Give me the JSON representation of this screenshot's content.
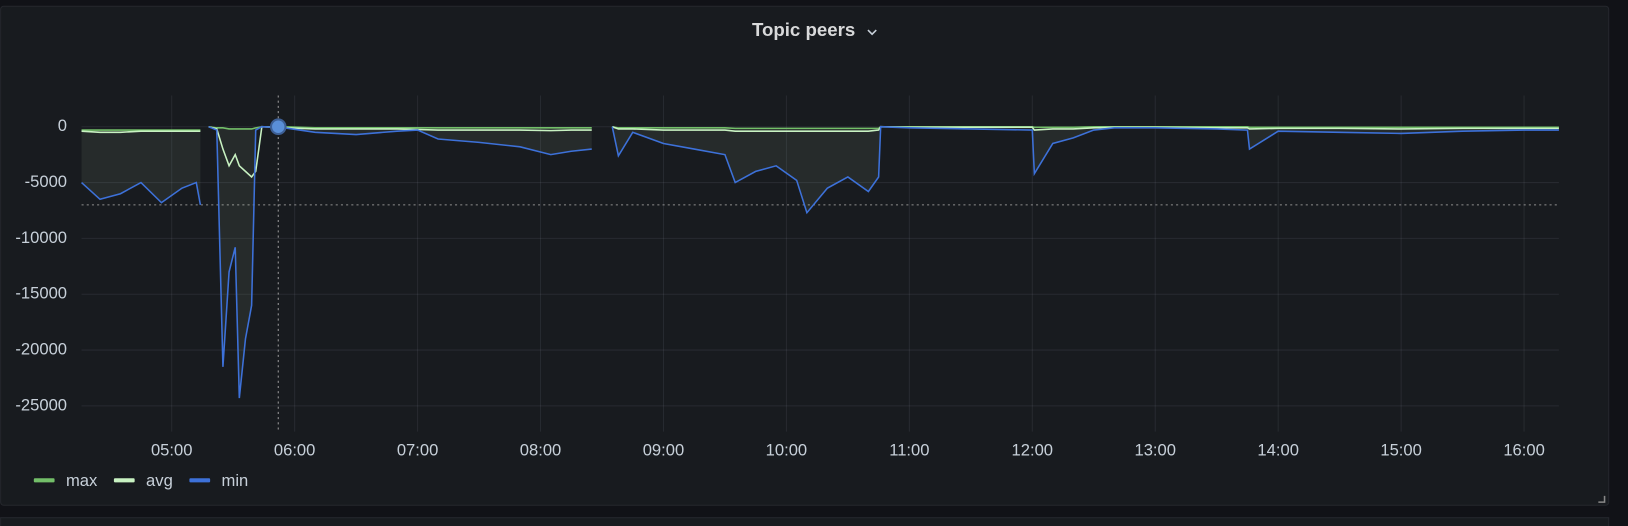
{
  "chart_data": {
    "type": "line",
    "title": "Topic peers",
    "x": [
      "04:16",
      "04:25",
      "04:35",
      "04:45",
      "04:55",
      "05:05",
      "05:12",
      "05:14",
      "05:16",
      "05:18",
      "05:22",
      "05:25",
      "05:28",
      "05:31",
      "05:33",
      "05:36",
      "05:39",
      "05:41",
      "05:44",
      "05:55",
      "06:10",
      "06:30",
      "06:50",
      "07:00",
      "07:10",
      "07:30",
      "07:50",
      "08:05",
      "08:15",
      "08:25",
      "08:30",
      "08:35",
      "08:38",
      "08:45",
      "09:00",
      "09:15",
      "09:30",
      "09:35",
      "09:45",
      "09:55",
      "10:05",
      "10:10",
      "10:20",
      "10:30",
      "10:40",
      "10:45",
      "10:46",
      "11:00",
      "11:30",
      "12:00",
      "12:01",
      "12:10",
      "12:20",
      "12:30",
      "12:40",
      "13:00",
      "13:30",
      "13:45",
      "13:46",
      "14:00",
      "14:30",
      "15:00",
      "15:30",
      "16:00",
      "16:17"
    ],
    "series": [
      {
        "name": "max",
        "color": "#73bf69",
        "values": [
          -300,
          -300,
          -300,
          -300,
          -300,
          -300,
          -300,
          -300,
          null,
          0,
          -100,
          -100,
          -200,
          -200,
          -200,
          -200,
          -200,
          -100,
          0,
          0,
          -100,
          -100,
          -100,
          -100,
          -100,
          -100,
          -100,
          -100,
          -100,
          -100,
          null,
          0,
          -100,
          -100,
          -100,
          -100,
          -100,
          -150,
          -150,
          -150,
          -150,
          -150,
          -150,
          -150,
          -150,
          -150,
          0,
          0,
          0,
          0,
          -50,
          -50,
          -50,
          0,
          0,
          0,
          0,
          0,
          -50,
          -50,
          -50,
          -50,
          -50,
          -50,
          -50
        ]
      },
      {
        "name": "avg",
        "color": "#c8f2c2",
        "values": [
          -400,
          -500,
          -500,
          -400,
          -400,
          -400,
          -400,
          -400,
          null,
          0,
          -200,
          -2000,
          -3500,
          -2500,
          -3500,
          -4000,
          -4500,
          -4000,
          0,
          -100,
          -200,
          -200,
          -200,
          -250,
          -300,
          -300,
          -300,
          -350,
          -300,
          -300,
          null,
          0,
          -200,
          -200,
          -300,
          -300,
          -300,
          -400,
          -400,
          -400,
          -400,
          -400,
          -400,
          -400,
          -400,
          -300,
          0,
          -50,
          -50,
          -50,
          -300,
          -200,
          -200,
          -100,
          -50,
          -50,
          -100,
          -100,
          -200,
          -150,
          -150,
          -200,
          -150,
          -150,
          -150
        ]
      },
      {
        "name": "min",
        "color": "#3d71d9",
        "values": [
          -5000,
          -6500,
          -6000,
          -5000,
          -6800,
          -5500,
          -5000,
          -7000,
          null,
          0,
          -300,
          -21500,
          -13000,
          -10800,
          -24300,
          -19000,
          -16000,
          -300,
          0,
          -100,
          -500,
          -700,
          -400,
          -300,
          -1100,
          -1400,
          -1800,
          -2500,
          -2200,
          -2000,
          null,
          0,
          -2600,
          -500,
          -1500,
          -2000,
          -2500,
          -5000,
          -4000,
          -3500,
          -4800,
          -7700,
          -5500,
          -4500,
          -5800,
          -4500,
          0,
          -100,
          -200,
          -300,
          -4200,
          -1500,
          -1000,
          -300,
          -100,
          -100,
          -200,
          -300,
          -2000,
          -400,
          -500,
          -600,
          -400,
          -300,
          -300
        ]
      }
    ],
    "xlim": [
      "04:16",
      "16:17"
    ],
    "xticks": [
      "05:00",
      "06:00",
      "07:00",
      "08:00",
      "09:00",
      "10:00",
      "11:00",
      "12:00",
      "13:00",
      "14:00",
      "15:00",
      "16:00"
    ],
    "ylim": [
      -27300,
      2800
    ],
    "yticks": [
      0,
      -5000,
      -10000,
      -15000,
      -20000,
      -25000
    ],
    "grid": true,
    "threshold": -7000,
    "crosshair": {
      "x": "05:52",
      "y": 0
    },
    "legend": "bottom-left"
  }
}
